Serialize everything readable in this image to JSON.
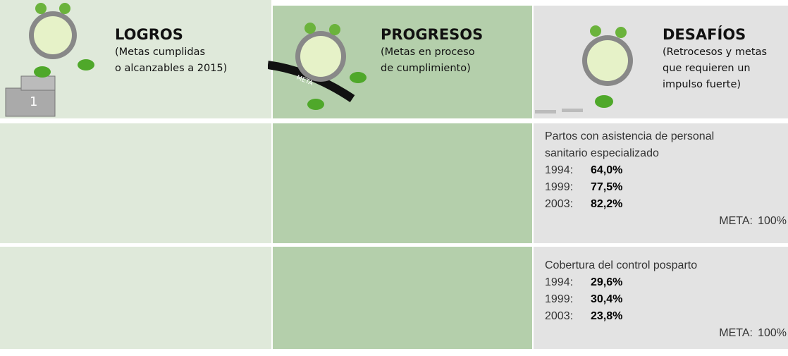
{
  "header": {
    "columns": [
      {
        "title": "LOGROS",
        "subtitle": [
          "(Metas cumplidas",
          "o alcanzables a 2015)"
        ]
      },
      {
        "title": "PROGRESOS",
        "subtitle": [
          "(Metas en proceso",
          "de cumplimiento)"
        ]
      },
      {
        "title": "DESAFÍOS",
        "subtitle": [
          "(Retrocesos y metas",
          "que requieren un",
          "impulso fuerte)"
        ]
      }
    ]
  },
  "illustrations": {
    "podium": "1",
    "ribbon": "META"
  },
  "rows": [
    {
      "indicator": [
        "Partos con asistencia de personal",
        "sanitario especializado"
      ],
      "entries": [
        {
          "year": "1994:",
          "value": "64,0%"
        },
        {
          "year": "1999:",
          "value": "77,5%"
        },
        {
          "year": "2003:",
          "value": "82,2%"
        }
      ],
      "goal": {
        "label": "META:",
        "value": "100%"
      }
    },
    {
      "indicator": [
        "Cobertura del control posparto"
      ],
      "entries": [
        {
          "year": "1994:",
          "value": "29,6%"
        },
        {
          "year": "1999:",
          "value": "30,4%"
        },
        {
          "year": "2003:",
          "value": "23,8%"
        }
      ],
      "goal": {
        "label": "META:",
        "value": "100%"
      }
    }
  ]
}
